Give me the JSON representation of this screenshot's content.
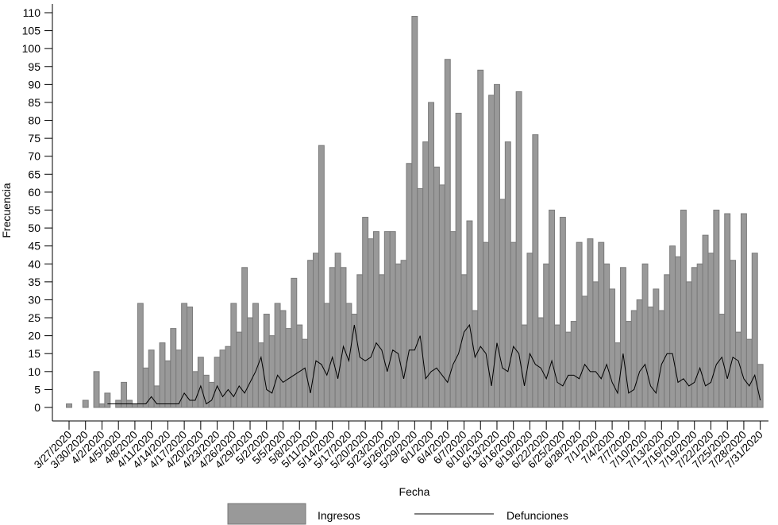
{
  "chart_data": {
    "type": "bar",
    "xlabel": "Fecha",
    "ylabel": "Frecuencia",
    "ylim": [
      0,
      110
    ],
    "ytick_step": 5,
    "grid": false,
    "legend_position": "bottom",
    "categories": [
      "3/27/2020",
      "3/28/2020",
      "3/29/2020",
      "3/30/2020",
      "3/31/2020",
      "4/1/2020",
      "4/2/2020",
      "4/3/2020",
      "4/4/2020",
      "4/5/2020",
      "4/6/2020",
      "4/7/2020",
      "4/8/2020",
      "4/9/2020",
      "4/10/2020",
      "4/11/2020",
      "4/12/2020",
      "4/13/2020",
      "4/14/2020",
      "4/15/2020",
      "4/16/2020",
      "4/17/2020",
      "4/18/2020",
      "4/19/2020",
      "4/20/2020",
      "4/21/2020",
      "4/22/2020",
      "4/23/2020",
      "4/24/2020",
      "4/25/2020",
      "4/26/2020",
      "4/27/2020",
      "4/28/2020",
      "4/29/2020",
      "4/30/2020",
      "5/1/2020",
      "5/2/2020",
      "5/3/2020",
      "5/4/2020",
      "5/5/2020",
      "5/6/2020",
      "5/7/2020",
      "5/8/2020",
      "5/9/2020",
      "5/10/2020",
      "5/11/2020",
      "5/12/2020",
      "5/13/2020",
      "5/14/2020",
      "5/15/2020",
      "5/16/2020",
      "5/17/2020",
      "5/18/2020",
      "5/19/2020",
      "5/20/2020",
      "5/21/2020",
      "5/22/2020",
      "5/23/2020",
      "5/24/2020",
      "5/25/2020",
      "5/26/2020",
      "5/27/2020",
      "5/28/2020",
      "5/29/2020",
      "5/30/2020",
      "5/31/2020",
      "6/1/2020",
      "6/2/2020",
      "6/3/2020",
      "6/4/2020",
      "6/5/2020",
      "6/6/2020",
      "6/7/2020",
      "6/8/2020",
      "6/9/2020",
      "6/10/2020",
      "6/11/2020",
      "6/12/2020",
      "6/13/2020",
      "6/14/2020",
      "6/15/2020",
      "6/16/2020",
      "6/17/2020",
      "6/18/2020",
      "6/19/2020",
      "6/20/2020",
      "6/21/2020",
      "6/22/2020",
      "6/23/2020",
      "6/24/2020",
      "6/25/2020",
      "6/26/2020",
      "6/27/2020",
      "6/28/2020",
      "6/29/2020",
      "6/30/2020",
      "7/1/2020",
      "7/2/2020",
      "7/3/2020",
      "7/4/2020",
      "7/5/2020",
      "7/6/2020",
      "7/7/2020",
      "7/8/2020",
      "7/9/2020",
      "7/10/2020",
      "7/11/2020",
      "7/12/2020",
      "7/13/2020",
      "7/14/2020",
      "7/15/2020",
      "7/16/2020",
      "7/17/2020",
      "7/18/2020",
      "7/19/2020",
      "7/20/2020",
      "7/21/2020",
      "7/22/2020",
      "7/23/2020",
      "7/24/2020",
      "7/25/2020",
      "7/26/2020",
      "7/27/2020",
      "7/28/2020",
      "7/29/2020",
      "7/30/2020",
      "7/31/2020"
    ],
    "tick_every": 3,
    "series": [
      {
        "name": "Ingresos",
        "type": "bar",
        "color": "#999999",
        "values": [
          1,
          0,
          0,
          2,
          0,
          10,
          1,
          4,
          0,
          2,
          7,
          2,
          1,
          29,
          11,
          16,
          6,
          18,
          13,
          22,
          16,
          29,
          28,
          10,
          14,
          9,
          7,
          14,
          16,
          17,
          29,
          21,
          39,
          25,
          29,
          18,
          26,
          20,
          29,
          27,
          22,
          36,
          23,
          19,
          41,
          43,
          73,
          29,
          39,
          43,
          39,
          29,
          26,
          37,
          53,
          47,
          49,
          37,
          49,
          49,
          40,
          41,
          68,
          109,
          61,
          74,
          85,
          67,
          62,
          97,
          49,
          82,
          37,
          52,
          27,
          94,
          46,
          87,
          90,
          58,
          74,
          46,
          88,
          23,
          43,
          76,
          25,
          40,
          55,
          23,
          53,
          21,
          24,
          46,
          31,
          47,
          35,
          46,
          40,
          33,
          18,
          39,
          24,
          27,
          30,
          40,
          28,
          33,
          27,
          37,
          45,
          42,
          55,
          35,
          39,
          40,
          48,
          43,
          55,
          26,
          54,
          41,
          21,
          54,
          19,
          43,
          12
        ]
      },
      {
        "name": "Defunciones",
        "type": "line",
        "color": "#000000",
        "values": [
          null,
          null,
          null,
          null,
          null,
          null,
          null,
          1,
          1,
          1,
          1,
          1,
          1,
          1,
          1,
          3,
          1,
          1,
          1,
          1,
          1,
          4,
          2,
          2,
          6,
          1,
          2,
          6,
          3,
          5,
          3,
          6,
          4,
          7,
          10,
          14,
          5,
          4,
          9,
          7,
          8,
          9,
          10,
          11,
          4,
          13,
          12,
          9,
          14,
          8,
          17,
          13,
          23,
          14,
          13,
          14,
          18,
          16,
          10,
          16,
          15,
          8,
          16,
          16,
          20,
          8,
          10,
          11,
          9,
          7,
          12,
          15,
          21,
          23,
          14,
          17,
          15,
          6,
          18,
          11,
          10,
          17,
          15,
          6,
          15,
          12,
          11,
          8,
          13,
          7,
          6,
          9,
          9,
          8,
          12,
          10,
          10,
          8,
          12,
          7,
          4,
          15,
          4,
          5,
          10,
          12,
          6,
          4,
          12,
          15,
          15,
          7,
          8,
          6,
          7,
          11,
          6,
          7,
          12,
          14,
          8,
          14,
          13,
          8,
          6,
          9,
          2
        ]
      }
    ]
  }
}
